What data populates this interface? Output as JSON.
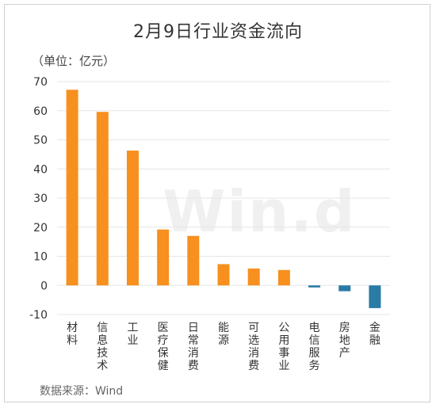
{
  "title": "2月9日行业资金流向",
  "unit": "（单位：亿元）",
  "source": "数据来源：Wind",
  "watermark": "Win.d",
  "colors": {
    "positive": "#F7901E",
    "negative": "#2A7BA6",
    "grid": "#e6e6e6",
    "text": "#333333"
  },
  "chart_data": {
    "type": "bar",
    "categories": [
      "材料",
      "信息技术",
      "工业",
      "医疗保健",
      "日常消费",
      "能源",
      "可选消费",
      "公用事业",
      "电信服务",
      "房地产",
      "金融"
    ],
    "values": [
      67.2,
      59.6,
      46.3,
      19.2,
      17.0,
      7.3,
      5.8,
      5.3,
      -0.7,
      -2.0,
      -7.8
    ],
    "yticks": [
      70,
      60,
      50,
      40,
      30,
      20,
      10,
      0,
      -10
    ],
    "ylim": [
      -10,
      70
    ],
    "grid": true,
    "legend": "none"
  }
}
